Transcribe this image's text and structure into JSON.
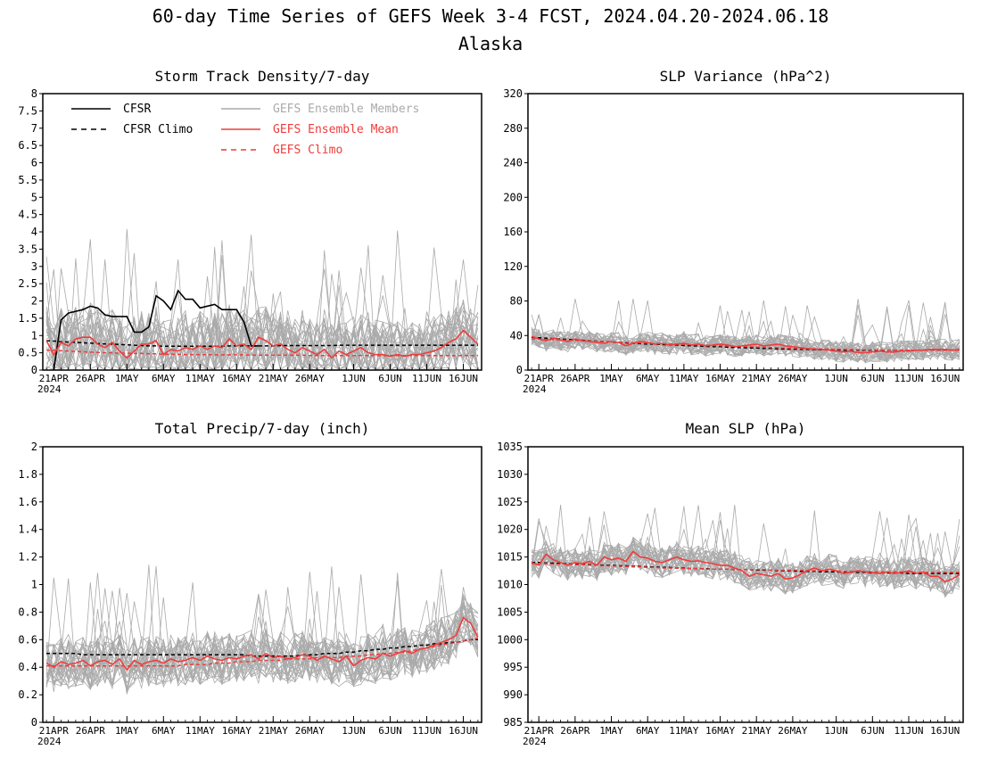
{
  "figure": {
    "title": "60-day Time Series of GEFS Week 3-4 FCST, 2024.04.20-2024.06.18",
    "subtitle": "Alaska"
  },
  "colors": {
    "cfsr": "#000000",
    "members": "#aaaaaa",
    "ensemble_mean": "#f03c3c",
    "gefs_climo": "#f03c3c"
  },
  "legend": {
    "cfsr": "CFSR",
    "cfsr_climo": "CFSR Climo",
    "members": "GEFS Ensemble Members",
    "ensemble_mean": "GEFS Ensemble Mean",
    "gefs_climo": "GEFS Climo"
  },
  "x_axis": {
    "tick_labels": [
      "21APR",
      "26APR",
      "1MAY",
      "6MAY",
      "11MAY",
      "16MAY",
      "21MAY",
      "26MAY",
      "1JUN",
      "6JUN",
      "11JUN",
      "16JUN"
    ],
    "tick_day_index": [
      1,
      6,
      11,
      16,
      21,
      26,
      31,
      36,
      42,
      47,
      52,
      57
    ],
    "year_label": "2024"
  },
  "chart_data": [
    {
      "type": "line",
      "title": "Storm Track Density/7-day",
      "ylim": [
        0,
        8
      ],
      "yticks": [
        "0",
        "0.5",
        "1",
        "1.5",
        "2",
        "2.5",
        "3",
        "3.5",
        "4",
        "4.5",
        "5",
        "5.5",
        "6",
        "6.5",
        "7",
        "7.5",
        "8"
      ],
      "member_band": {
        "mean": 0.65,
        "spread": 1.0,
        "peak_max": 4.2
      },
      "series": [
        {
          "name": "CFSR",
          "style": "solid",
          "color": "#000000",
          "values": [
            null,
            0.0,
            1.45,
            1.65,
            1.7,
            1.75,
            1.85,
            1.8,
            1.6,
            1.55,
            1.55,
            1.55,
            1.1,
            1.1,
            1.25,
            2.15,
            2.0,
            1.75,
            2.3,
            2.05,
            2.05,
            1.8,
            1.85,
            1.9,
            1.75,
            1.75,
            1.75,
            1.4,
            0.7,
            0.7
          ]
        },
        {
          "name": "CFSR Climo",
          "style": "dash",
          "color": "#000000",
          "values": [
            0.85,
            0.84,
            0.82,
            0.81,
            0.8,
            0.79,
            0.78,
            0.77,
            0.76,
            0.75,
            0.74,
            0.73,
            0.72,
            0.71,
            0.7,
            0.7,
            0.69,
            0.69,
            0.69,
            0.69,
            0.69,
            0.69,
            0.69,
            0.69,
            0.69,
            0.7,
            0.7,
            0.7,
            0.7,
            0.7,
            0.7,
            0.7,
            0.71,
            0.71,
            0.71,
            0.71,
            0.71,
            0.71,
            0.71,
            0.71,
            0.72,
            0.72,
            0.72,
            0.72,
            0.72,
            0.72,
            0.72,
            0.72,
            0.72,
            0.72,
            0.72,
            0.72,
            0.72,
            0.72,
            0.72,
            0.72,
            0.72,
            0.72,
            0.72,
            0.72
          ]
        },
        {
          "name": "GEFS Ensemble Mean",
          "style": "solid",
          "color": "#f03c3c",
          "values": [
            0.85,
            0.45,
            0.8,
            0.7,
            0.9,
            0.95,
            0.95,
            0.75,
            0.65,
            0.8,
            0.55,
            0.35,
            0.55,
            0.75,
            0.75,
            0.85,
            0.45,
            0.6,
            0.55,
            0.65,
            0.6,
            0.7,
            0.6,
            0.7,
            0.65,
            0.9,
            0.7,
            0.75,
            0.6,
            0.95,
            0.85,
            0.7,
            0.75,
            0.6,
            0.5,
            0.65,
            0.55,
            0.45,
            0.6,
            0.35,
            0.55,
            0.45,
            0.55,
            0.65,
            0.5,
            0.45,
            0.45,
            0.4,
            0.45,
            0.4,
            0.45,
            0.45,
            0.5,
            0.55,
            0.65,
            0.8,
            0.9,
            1.15,
            0.95,
            0.75
          ]
        },
        {
          "name": "GEFS Climo",
          "style": "dash",
          "color": "#f03c3c",
          "values": [
            0.58,
            0.57,
            0.56,
            0.55,
            0.54,
            0.53,
            0.52,
            0.51,
            0.5,
            0.5,
            0.49,
            0.49,
            0.48,
            0.48,
            0.47,
            0.47,
            0.46,
            0.46,
            0.46,
            0.45,
            0.45,
            0.45,
            0.45,
            0.44,
            0.44,
            0.44,
            0.44,
            0.44,
            0.43,
            0.43,
            0.43,
            0.43,
            0.43,
            0.43,
            0.43,
            0.43,
            0.42,
            0.42,
            0.42,
            0.42,
            0.42,
            0.42,
            0.42,
            0.42,
            0.42,
            0.42,
            0.42,
            0.42,
            0.42,
            0.42,
            0.42,
            0.42,
            0.42,
            0.42,
            0.42,
            0.42,
            0.42,
            0.42,
            0.42,
            0.42
          ]
        }
      ]
    },
    {
      "type": "line",
      "title": "SLP Variance (hPa^2)",
      "ylim": [
        0,
        320
      ],
      "yticks": [
        "0",
        "40",
        "80",
        "120",
        "160",
        "200",
        "240",
        "280",
        "320"
      ],
      "member_band": {
        "mean": 30,
        "spread": 12,
        "peak_max": 84
      },
      "series": [
        {
          "name": "CFSR Climo",
          "style": "dash",
          "color": "#000000",
          "values": [
            38,
            37.5,
            37,
            36.5,
            36,
            35.5,
            35,
            34.5,
            34,
            33.5,
            33,
            32.5,
            32,
            31.5,
            31,
            30.5,
            30,
            30,
            29.5,
            29,
            29,
            28.5,
            28,
            28,
            27.5,
            27,
            27,
            26.5,
            26,
            26,
            25.5,
            25.5,
            25,
            25,
            24.5,
            24.5,
            24,
            24,
            24,
            23.5,
            23.5,
            23.5,
            23.5,
            23,
            23,
            23,
            23,
            23,
            23,
            23,
            23,
            23,
            23,
            23,
            23,
            23,
            23,
            23,
            23,
            23
          ]
        },
        {
          "name": "GEFS Ensemble Mean",
          "style": "solid",
          "color": "#f03c3c",
          "values": [
            39,
            36,
            34,
            37,
            35,
            33,
            36,
            34,
            33,
            32,
            31,
            33,
            32,
            28,
            31,
            33,
            32,
            30,
            31,
            29,
            30,
            31,
            29,
            30,
            28,
            29,
            30,
            29,
            27,
            28,
            29,
            30,
            28,
            29,
            30,
            28,
            27,
            26,
            25,
            24,
            24,
            23,
            22,
            21,
            22,
            20,
            20,
            21,
            22,
            21,
            21,
            22,
            22,
            23,
            23,
            24,
            24,
            24,
            23,
            24
          ]
        },
        {
          "name": "GEFS Climo",
          "style": "dash",
          "color": "#f03c3c",
          "values": [
            36,
            35.7,
            35.4,
            35.1,
            34.8,
            34.5,
            34.2,
            33.9,
            33.6,
            33.3,
            33,
            32.7,
            32.4,
            32.1,
            31.8,
            31.5,
            31.2,
            30.9,
            30.6,
            30.3,
            30,
            29.7,
            29.4,
            29.1,
            28.8,
            28.5,
            28.2,
            27.9,
            27.6,
            27.3,
            27,
            26.7,
            26.4,
            26.1,
            25.8,
            25.5,
            25.3,
            25.1,
            24.9,
            24.7,
            24.5,
            24.3,
            24.1,
            23.9,
            23.7,
            23.6,
            23.5,
            23.4,
            23.3,
            23.2,
            23.1,
            23,
            23,
            23,
            23,
            23,
            23,
            23,
            23,
            23
          ]
        }
      ]
    },
    {
      "type": "line",
      "title": "Total Precip/7-day (inch)",
      "ylim": [
        0,
        2
      ],
      "yticks": [
        "0",
        "0.2",
        "0.4",
        "0.6",
        "0.8",
        "1",
        "1.2",
        "1.4",
        "1.6",
        "1.8",
        "2"
      ],
      "member_band": {
        "mean": 0.42,
        "spread": 0.18,
        "peak_max": 1.15
      },
      "series": [
        {
          "name": "CFSR Climo",
          "style": "dash",
          "color": "#000000",
          "values": [
            0.5,
            0.5,
            0.5,
            0.5,
            0.5,
            0.49,
            0.49,
            0.49,
            0.49,
            0.49,
            0.49,
            0.49,
            0.49,
            0.49,
            0.49,
            0.49,
            0.49,
            0.49,
            0.49,
            0.49,
            0.49,
            0.49,
            0.49,
            0.49,
            0.49,
            0.49,
            0.49,
            0.49,
            0.48,
            0.48,
            0.48,
            0.48,
            0.48,
            0.48,
            0.48,
            0.49,
            0.49,
            0.49,
            0.5,
            0.5,
            0.5,
            0.51,
            0.51,
            0.52,
            0.52,
            0.53,
            0.53,
            0.54,
            0.54,
            0.55,
            0.55,
            0.56,
            0.56,
            0.57,
            0.57,
            0.58,
            0.58,
            0.59,
            0.6,
            0.6
          ]
        },
        {
          "name": "GEFS Ensemble Mean",
          "style": "solid",
          "color": "#f03c3c",
          "values": [
            0.43,
            0.4,
            0.44,
            0.42,
            0.43,
            0.45,
            0.41,
            0.44,
            0.45,
            0.42,
            0.46,
            0.38,
            0.45,
            0.42,
            0.44,
            0.45,
            0.43,
            0.46,
            0.44,
            0.45,
            0.47,
            0.45,
            0.48,
            0.46,
            0.45,
            0.47,
            0.46,
            0.48,
            0.49,
            0.46,
            0.5,
            0.47,
            0.48,
            0.46,
            0.47,
            0.49,
            0.48,
            0.45,
            0.48,
            0.46,
            0.44,
            0.48,
            0.41,
            0.45,
            0.47,
            0.46,
            0.5,
            0.48,
            0.5,
            0.52,
            0.5,
            0.53,
            0.54,
            0.56,
            0.58,
            0.6,
            0.63,
            0.76,
            0.72,
            0.62
          ]
        },
        {
          "name": "GEFS Climo",
          "style": "dash",
          "color": "#f03c3c",
          "values": [
            0.41,
            0.41,
            0.41,
            0.41,
            0.41,
            0.41,
            0.41,
            0.41,
            0.41,
            0.41,
            0.41,
            0.41,
            0.41,
            0.41,
            0.41,
            0.41,
            0.41,
            0.41,
            0.41,
            0.42,
            0.42,
            0.42,
            0.42,
            0.43,
            0.43,
            0.43,
            0.44,
            0.44,
            0.44,
            0.45,
            0.45,
            0.45,
            0.45,
            0.46,
            0.46,
            0.46,
            0.46,
            0.47,
            0.47,
            0.47,
            0.47,
            0.48,
            0.48,
            0.48,
            0.49,
            0.49,
            0.5,
            0.5,
            0.51,
            0.51,
            0.52,
            0.53,
            0.54,
            0.55,
            0.56,
            0.57,
            0.58,
            0.59,
            0.6,
            0.61
          ]
        }
      ]
    },
    {
      "type": "line",
      "title": "Mean SLP (hPa)",
      "ylim": [
        985,
        1035
      ],
      "yticks": [
        "985",
        "990",
        "995",
        "1000",
        "1005",
        "1010",
        "1015",
        "1020",
        "1025",
        "1030",
        "1035"
      ],
      "member_band": {
        "mean": 1013,
        "spread": 2.8,
        "peak_max": 1024.5
      },
      "series": [
        {
          "name": "CFSR Climo",
          "style": "dash",
          "color": "#000000",
          "values": [
            1014,
            1014,
            1013.9,
            1013.9,
            1013.8,
            1013.8,
            1013.7,
            1013.7,
            1013.6,
            1013.6,
            1013.5,
            1013.5,
            1013.4,
            1013.4,
            1013.3,
            1013.3,
            1013.2,
            1013.2,
            1013.1,
            1013.1,
            1013,
            1013,
            1012.9,
            1012.9,
            1012.9,
            1012.8,
            1012.8,
            1012.8,
            1012.7,
            1012.7,
            1012.7,
            1012.6,
            1012.6,
            1012.6,
            1012.5,
            1012.5,
            1012.5,
            1012.4,
            1012.4,
            1012.4,
            1012.3,
            1012.3,
            1012.3,
            1012.2,
            1012.2,
            1012.2,
            1012.2,
            1012.1,
            1012.1,
            1012.1,
            1012.1,
            1012.1,
            1012,
            1012,
            1012,
            1012,
            1012,
            1012,
            1012,
            1012
          ]
        },
        {
          "name": "GEFS Ensemble Mean",
          "style": "solid",
          "color": "#f03c3c",
          "values": [
            1014,
            1013.5,
            1015.5,
            1014.5,
            1014,
            1013.5,
            1014,
            1013.8,
            1014.2,
            1013.5,
            1015,
            1014.5,
            1014.8,
            1014.2,
            1016,
            1015,
            1014.8,
            1014.2,
            1014,
            1014.5,
            1015,
            1014.5,
            1014.2,
            1014.3,
            1014,
            1013.8,
            1013.5,
            1013.5,
            1013,
            1012.5,
            1011.5,
            1012,
            1011.8,
            1011.5,
            1012,
            1011,
            1011.2,
            1011.8,
            1012.5,
            1013,
            1012.5,
            1012.8,
            1012.5,
            1012,
            1012.2,
            1012.5,
            1012.3,
            1012.2,
            1012,
            1012.3,
            1012,
            1012.2,
            1012.5,
            1012,
            1012.3,
            1011.5,
            1011.5,
            1010.5,
            1011,
            1011.8
          ]
        },
        {
          "name": "GEFS Climo",
          "style": "dash",
          "color": "#f03c3c",
          "values": [
            1013.8,
            1013.8,
            1013.8,
            1013.7,
            1013.7,
            1013.7,
            1013.6,
            1013.6,
            1013.5,
            1013.5,
            1013.4,
            1013.4,
            1013.3,
            1013.3,
            1013.2,
            1013.2,
            1013.1,
            1013.1,
            1013,
            1013,
            1013,
            1012.9,
            1012.9,
            1012.9,
            1012.8,
            1012.8,
            1012.8,
            1012.8,
            1012.7,
            1012.7,
            1012.7,
            1012.7,
            1012.7,
            1012.6,
            1012.6,
            1012.6,
            1012.6,
            1012.6,
            1012.5,
            1012.5,
            1012.5,
            1012.5,
            1012.5,
            1012.4,
            1012.4,
            1012.4,
            1012.4,
            1012.3,
            1012.3,
            1012.3,
            1012.3,
            1012.3,
            1012.2,
            1012.2,
            1012.2,
            1012.2,
            1012.2,
            1012.2,
            1012.2,
            1012.2
          ]
        }
      ]
    }
  ]
}
